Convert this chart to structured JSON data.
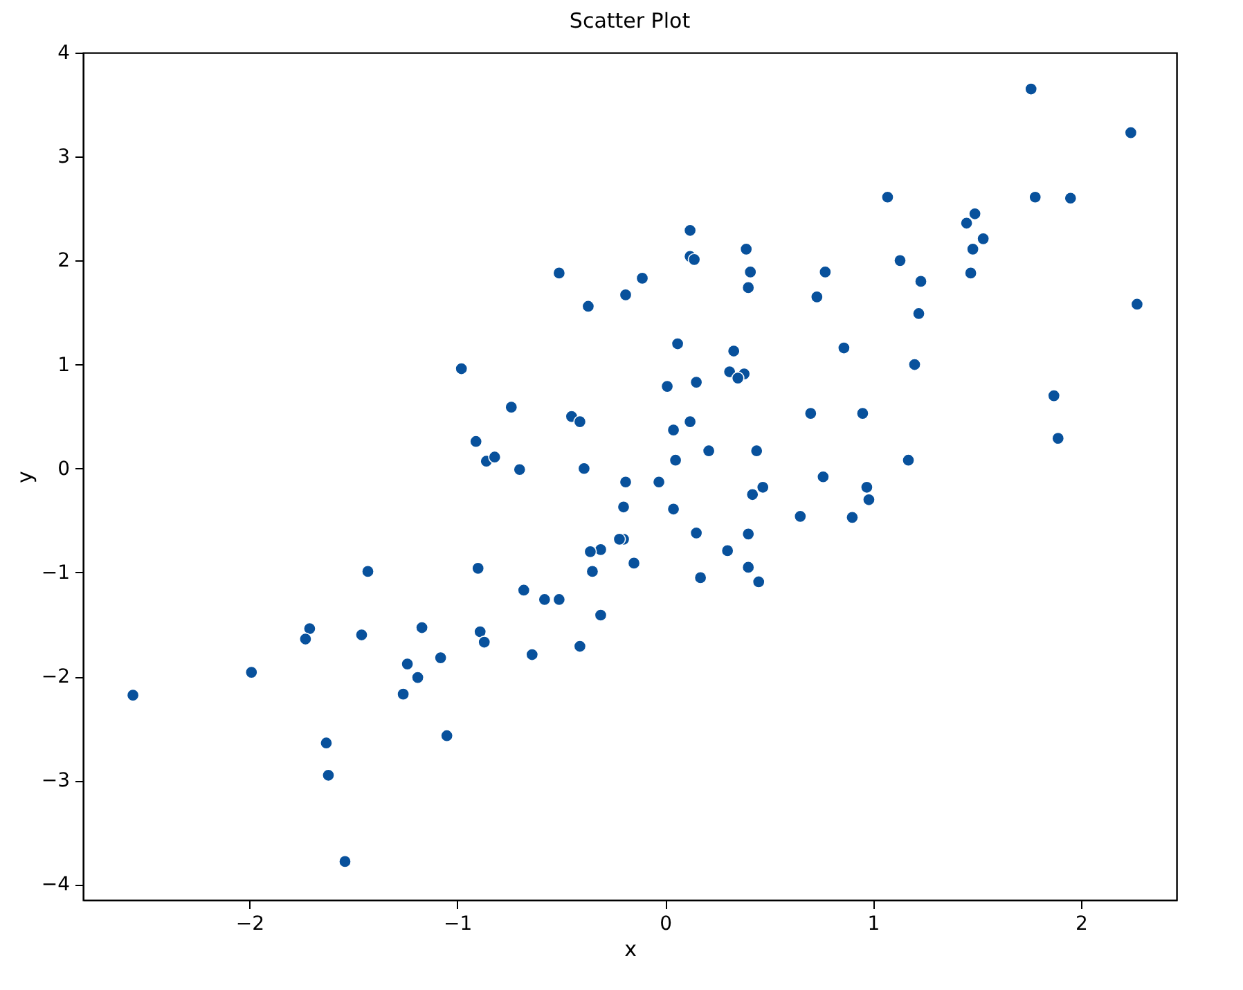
{
  "chart_data": {
    "type": "scatter",
    "title": "Scatter Plot",
    "xlabel": "x",
    "ylabel": "y",
    "xlim": [
      -2.8,
      2.46
    ],
    "ylim": [
      -4.15,
      4.0
    ],
    "xticks": [
      -2,
      -1,
      0,
      1,
      2
    ],
    "yticks": [
      -4,
      -3,
      -2,
      -1,
      0,
      1,
      2,
      3,
      4
    ],
    "grid": false,
    "marker": "circle",
    "series": [
      {
        "color": "#08519c",
        "x": [
          0.12,
          0.12,
          0.14,
          0.39,
          0.41,
          0.4,
          -0.11,
          -0.19,
          0.77,
          0.73,
          1.13,
          1.23,
          1.22,
          1.2,
          1.17,
          1.45,
          1.49,
          1.53,
          1.48,
          1.47,
          2.27,
          1.87,
          1.89,
          0.06,
          0.33,
          0.31,
          0.38,
          0.35,
          0.15,
          0.01,
          0.86,
          0.7,
          0.95,
          0.04,
          0.12,
          0.05,
          0.21,
          0.44,
          1.76,
          2.24,
          1.07,
          1.78,
          1.95,
          0.76,
          -0.19,
          -0.03,
          -0.2,
          0.04,
          0.47,
          0.42,
          0.97,
          0.98,
          0.65,
          0.9,
          -0.2,
          -0.15,
          0.15,
          0.4,
          0.3,
          0.17,
          0.4,
          0.45,
          -2.56,
          -1.99,
          -1.71,
          -1.73,
          -1.43,
          -1.46,
          -1.63,
          -1.62,
          -1.54,
          -1.17,
          -1.24,
          -1.19,
          -1.26,
          -1.08,
          -1.05,
          -0.9,
          -0.89,
          -0.87,
          -0.86,
          -0.82,
          -0.7,
          -0.68,
          -0.64,
          -0.58,
          -0.51,
          -0.41,
          -0.39,
          -0.31,
          -0.36,
          -0.22,
          -0.35,
          -0.31,
          -0.51,
          -0.37,
          -0.98,
          -0.74,
          -0.91,
          -0.45,
          -0.41
        ],
        "values": [
          2.29,
          2.04,
          2.01,
          2.11,
          1.89,
          1.74,
          1.83,
          1.67,
          1.89,
          1.65,
          2.0,
          1.8,
          1.49,
          1.0,
          0.08,
          2.36,
          2.45,
          2.21,
          2.11,
          1.88,
          1.58,
          0.7,
          0.29,
          1.2,
          1.13,
          0.93,
          0.91,
          0.87,
          0.83,
          0.79,
          1.16,
          0.53,
          0.53,
          0.37,
          0.45,
          0.08,
          0.17,
          0.17,
          3.65,
          3.23,
          2.61,
          2.61,
          2.6,
          -0.08,
          -0.13,
          -0.13,
          -0.37,
          -0.39,
          -0.18,
          -0.25,
          -0.18,
          -0.3,
          -0.46,
          -0.47,
          -0.68,
          -0.91,
          -0.62,
          -0.63,
          -0.79,
          -1.05,
          -0.95,
          -1.09,
          -2.18,
          -1.96,
          -1.54,
          -1.64,
          -0.99,
          -1.6,
          -2.64,
          -2.95,
          -3.78,
          -1.53,
          -1.88,
          -2.01,
          -2.17,
          -1.82,
          -2.57,
          -0.96,
          -1.57,
          -1.67,
          0.07,
          0.11,
          -0.01,
          -1.17,
          -1.79,
          -1.26,
          -1.26,
          -1.71,
          0.0,
          -0.78,
          -0.8,
          -0.68,
          -0.99,
          -1.41,
          1.88,
          1.56,
          0.96,
          0.59,
          0.26,
          0.5,
          0.45
        ]
      }
    ]
  }
}
